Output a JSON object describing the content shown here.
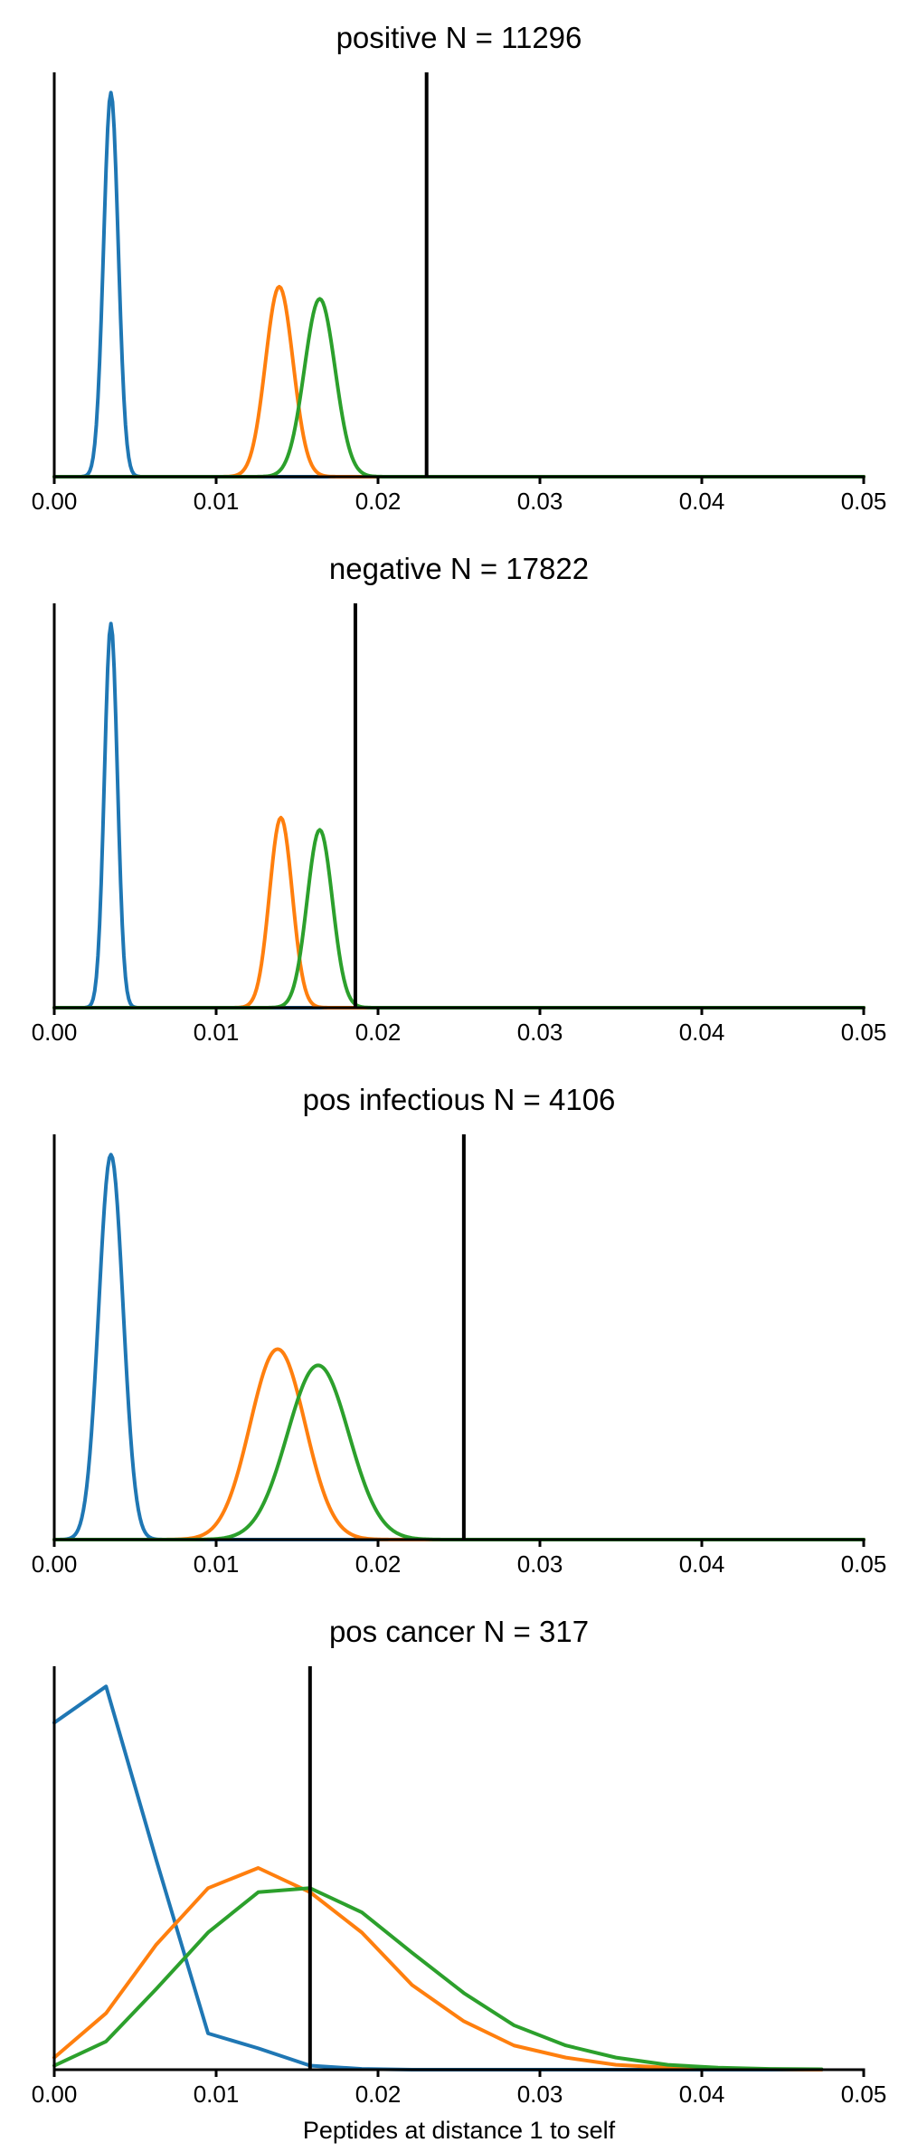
{
  "figure": {
    "xlabel": "Peptides at distance 1 to self",
    "xticks": [
      "0.00",
      "0.01",
      "0.02",
      "0.03",
      "0.04",
      "0.05"
    ]
  },
  "colors": {
    "series_1": "#1f77b4",
    "series_2": "#ff7f0e",
    "series_3": "#2ca02c",
    "threshold": "#000000"
  },
  "chart_data": [
    {
      "type": "line",
      "title": "positive N = 11296",
      "xlim": [
        0,
        0.05
      ],
      "xticks": [
        0,
        0.01,
        0.02,
        0.03,
        0.04,
        0.05
      ],
      "y_axis": "unlabeled",
      "threshold_x": 0.023,
      "series": [
        {
          "color": "series_1",
          "shape": "gaussian",
          "mu": 0.0035,
          "sigma": 0.00045,
          "peak": 0.95
        },
        {
          "color": "series_2",
          "shape": "gaussian",
          "mu": 0.0139,
          "sigma": 0.00085,
          "peak": 0.47
        },
        {
          "color": "series_3",
          "shape": "gaussian",
          "mu": 0.0164,
          "sigma": 0.00095,
          "peak": 0.44
        }
      ]
    },
    {
      "type": "line",
      "title": "negative N = 17822",
      "xlim": [
        0,
        0.05
      ],
      "xticks": [
        0,
        0.01,
        0.02,
        0.03,
        0.04,
        0.05
      ],
      "y_axis": "unlabeled",
      "threshold_x": 0.0186,
      "series": [
        {
          "color": "series_1",
          "shape": "gaussian",
          "mu": 0.0035,
          "sigma": 0.0004,
          "peak": 0.95
        },
        {
          "color": "series_2",
          "shape": "gaussian",
          "mu": 0.014,
          "sigma": 0.0007,
          "peak": 0.47
        },
        {
          "color": "series_3",
          "shape": "gaussian",
          "mu": 0.0164,
          "sigma": 0.00078,
          "peak": 0.44
        }
      ]
    },
    {
      "type": "line",
      "title": "pos infectious N = 4106",
      "xlim": [
        0,
        0.05
      ],
      "xticks": [
        0,
        0.01,
        0.02,
        0.03,
        0.04,
        0.05
      ],
      "y_axis": "unlabeled",
      "threshold_x": 0.0253,
      "series": [
        {
          "color": "series_1",
          "shape": "gaussian",
          "mu": 0.0035,
          "sigma": 0.00075,
          "peak": 0.95
        },
        {
          "color": "series_2",
          "shape": "gaussian",
          "mu": 0.0138,
          "sigma": 0.0017,
          "peak": 0.47
        },
        {
          "color": "series_3",
          "shape": "gaussian",
          "mu": 0.0163,
          "sigma": 0.0019,
          "peak": 0.43
        }
      ]
    },
    {
      "type": "line",
      "title": "pos cancer N = 317",
      "xlim": [
        0,
        0.05
      ],
      "xticks": [
        0,
        0.01,
        0.02,
        0.03,
        0.04,
        0.05
      ],
      "y_axis": "unlabeled",
      "threshold_x": 0.0158,
      "series": [
        {
          "color": "series_1",
          "x": [
            0,
            0.0032,
            0.0063,
            0.0095,
            0.0126,
            0.0158,
            0.019,
            0.0221,
            0.0253,
            0.0284,
            0.0316,
            0.0347,
            0.0379,
            0.041,
            0.0442,
            0.0474
          ],
          "y": [
            0.86,
            0.95,
            0.52,
            0.09,
            0.053,
            0.01,
            0.002,
            0,
            0,
            0,
            0,
            0,
            0,
            0,
            0,
            0
          ]
        },
        {
          "color": "series_2",
          "x": [
            0,
            0.0032,
            0.0063,
            0.0095,
            0.0126,
            0.0158,
            0.019,
            0.0221,
            0.0253,
            0.0284,
            0.0316,
            0.0347,
            0.0379,
            0.041,
            0.0442,
            0.0474
          ],
          "y": [
            0.03,
            0.14,
            0.31,
            0.45,
            0.5,
            0.44,
            0.34,
            0.21,
            0.12,
            0.06,
            0.03,
            0.012,
            0.005,
            0.002,
            0.001,
            0
          ],
          "note": "values read as fraction of plot height"
        },
        {
          "color": "series_3",
          "x": [
            0,
            0.0032,
            0.0063,
            0.0095,
            0.0126,
            0.0158,
            0.019,
            0.0221,
            0.0253,
            0.0284,
            0.0316,
            0.0347,
            0.0379,
            0.041,
            0.0442,
            0.0474
          ],
          "y": [
            0.01,
            0.07,
            0.2,
            0.34,
            0.44,
            0.45,
            0.39,
            0.29,
            0.19,
            0.11,
            0.06,
            0.03,
            0.012,
            0.005,
            0.002,
            0.001
          ]
        }
      ]
    }
  ]
}
